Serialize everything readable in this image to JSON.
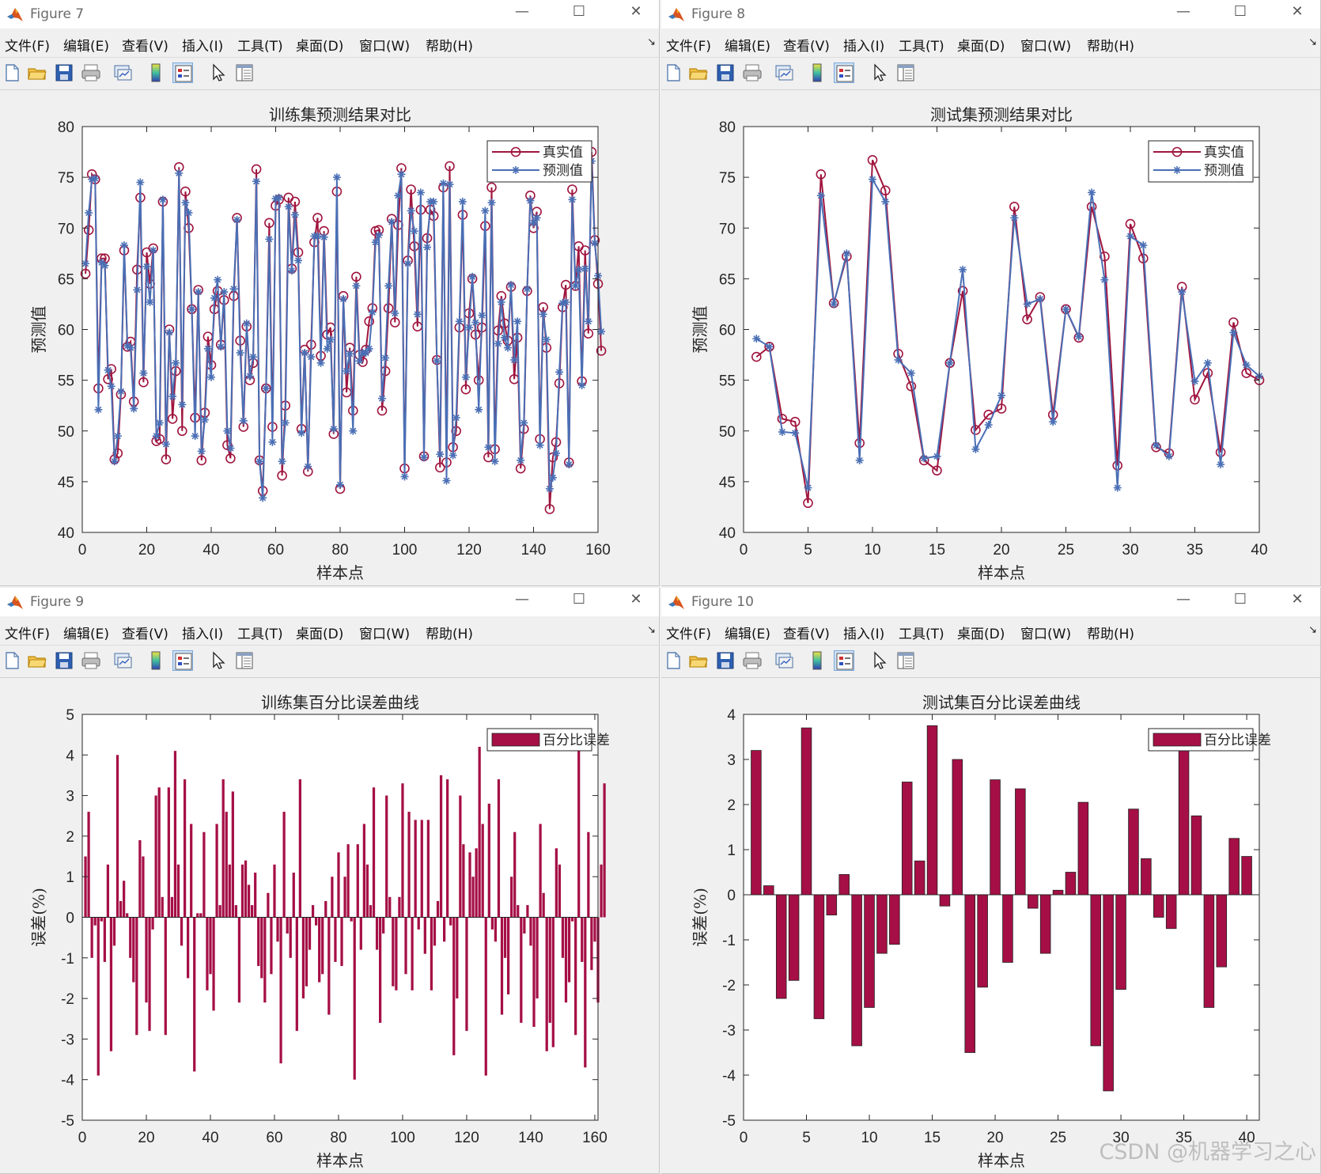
{
  "menus": [
    "文件(F)",
    "编辑(E)",
    "查看(V)",
    "插入(I)",
    "工具(T)",
    "桌面(D)",
    "窗口(W)",
    "帮助(H)"
  ],
  "toolbar_icons": [
    "new-file-icon",
    "open-folder-icon",
    "save-icon",
    "print-icon",
    "link-plot-icon",
    "colorbar-icon",
    "legend-icon",
    "pointer-icon",
    "property-inspector-icon"
  ],
  "window_controls": {
    "minimize": "—",
    "maximize": "☐",
    "close": "✕"
  },
  "colors": {
    "true": "#a0153e",
    "pred": "#4a6fb5",
    "bar": "#a50f45"
  },
  "watermark": "CSDN @机器学习之心",
  "windows": [
    {
      "id": "fig7",
      "title": "Figure 7"
    },
    {
      "id": "fig8",
      "title": "Figure 8"
    },
    {
      "id": "fig9",
      "title": "Figure 9"
    },
    {
      "id": "fig10",
      "title": "Figure 10"
    }
  ],
  "chart_data": [
    {
      "type": "line",
      "title": "训练集预测结果对比",
      "xlabel": "样本点",
      "ylabel": "预测值",
      "xlim": [
        0,
        160
      ],
      "ylim": [
        40,
        80
      ],
      "xticks": [
        0,
        20,
        40,
        60,
        80,
        100,
        120,
        140,
        160
      ],
      "yticks": [
        40,
        45,
        50,
        55,
        60,
        65,
        70,
        75,
        80
      ],
      "legend_position": "top-right",
      "grid": false,
      "series": [
        {
          "name": "真实值",
          "marker": "circle",
          "values": [
            65.5,
            69.8,
            75.3,
            74.8,
            54.2,
            67.0,
            67.0,
            55.1,
            56.1,
            47.2,
            47.8,
            53.6,
            67.8,
            58.3,
            58.8,
            52.9,
            65.9,
            73.0,
            54.8,
            67.6,
            64.5,
            68.0,
            49.0,
            49.2,
            72.6,
            47.2,
            60.0,
            51.2,
            55.9,
            76.0,
            50.0,
            73.6,
            70.0,
            62.0,
            51.3,
            63.9,
            47.1,
            51.8,
            59.3,
            56.5,
            62.0,
            63.8,
            58.5,
            62.9,
            48.6,
            47.3,
            63.3,
            71.0,
            58.9,
            50.4,
            60.3,
            55.0,
            56.7,
            75.8,
            47.1,
            44.1,
            54.2,
            70.5,
            50.4,
            72.2,
            72.8,
            45.6,
            52.5,
            73.0,
            66.0,
            72.6,
            67.6,
            50.2,
            58.0,
            46.0,
            58.5,
            68.6,
            71.0,
            57.4,
            69.7,
            59.5,
            60.2,
            49.7,
            73.6,
            44.3,
            63.3,
            53.8,
            58.2,
            52.0,
            65.2,
            57.5,
            56.8,
            58.0,
            60.8,
            62.1,
            69.7,
            69.8,
            52.0,
            55.9,
            62.1,
            70.9,
            60.7,
            70.3,
            75.9,
            46.3,
            66.8,
            73.8,
            68.2,
            60.3,
            71.8,
            47.5,
            69.0,
            71.8,
            71.2,
            57.0,
            46.4,
            74.0,
            46.9,
            76.1,
            48.4,
            50.0,
            60.2,
            71.3,
            54.1,
            61.6,
            65.0,
            59.5,
            55.0,
            60.2,
            70.2,
            47.4,
            74.0,
            48.2,
            59.9,
            63.3,
            60.6,
            58.9,
            64.2,
            55.1,
            59.2,
            46.3,
            50.2,
            63.8,
            73.2,
            70.0,
            71.6,
            49.2,
            62.2,
            58.2,
            42.3,
            47.4,
            48.9,
            54.7,
            62.2,
            64.4,
            46.9,
            73.8,
            64.3,
            68.2,
            54.9,
            67.8,
            59.6,
            77.5,
            68.8,
            64.5,
            57.9
          ]
        },
        {
          "name": "预测值",
          "marker": "star",
          "values": [
            66.5,
            71.5,
            74.8,
            74.9,
            52.1,
            66.6,
            66.3,
            56.0,
            54.4,
            47.0,
            49.5,
            53.9,
            68.3,
            58.4,
            58.2,
            52.2,
            63.9,
            74.5,
            55.7,
            66.2,
            62.7,
            67.8,
            49.5,
            50.8,
            72.8,
            48.7,
            59.7,
            53.4,
            56.7,
            75.4,
            52.6,
            72.5,
            71.5,
            62.0,
            49.5,
            63.7,
            48.0,
            51.1,
            58.1,
            55.3,
            63.1,
            64.9,
            58.3,
            63.7,
            50.0,
            48.3,
            64.0,
            70.8,
            57.7,
            51.0,
            60.6,
            55.4,
            57.3,
            74.6,
            47.0,
            43.4,
            54.2,
            68.9,
            48.9,
            72.9,
            73.0,
            47.0,
            50.8,
            72.1,
            65.8,
            71.3,
            66.8,
            49.8,
            57.7,
            46.5,
            57.3,
            69.2,
            69.2,
            56.7,
            69.1,
            58.1,
            59.0,
            50.2,
            75.0,
            44.7,
            63.0,
            55.9,
            57.6,
            50.0,
            64.3,
            56.9,
            57.7,
            57.7,
            58.1,
            61.7,
            68.6,
            69.3,
            53.2,
            57.2,
            64.3,
            70.6,
            61.6,
            73.2,
            75.3,
            45.5,
            66.5,
            71.7,
            69.7,
            61.5,
            73.5,
            47.4,
            68.1,
            72.6,
            72.6,
            56.9,
            47.7,
            74.4,
            45.1,
            74.3,
            47.6,
            51.3,
            60.8,
            72.6,
            55.3,
            60.2,
            65.2,
            60.7,
            52.1,
            61.4,
            71.7,
            48.4,
            72.5,
            47.0,
            58.6,
            62.7,
            59.2,
            58.2,
            64.4,
            57.0,
            60.8,
            47.1,
            50.8,
            64.0,
            72.7,
            70.5,
            71.0,
            48.6,
            61.5,
            59.0,
            44.3,
            45.4,
            47.8,
            55.8,
            62.6,
            62.7,
            46.7,
            72.8,
            64.3,
            65.9,
            54.5,
            66.0,
            60.8,
            76.6,
            68.5,
            65.3,
            59.8
          ]
        }
      ]
    },
    {
      "type": "line",
      "title": "测试集预测结果对比",
      "xlabel": "样本点",
      "ylabel": "预测值",
      "xlim": [
        0,
        40
      ],
      "ylim": [
        40,
        80
      ],
      "xticks": [
        0,
        5,
        10,
        15,
        20,
        25,
        30,
        35,
        40
      ],
      "yticks": [
        40,
        45,
        50,
        55,
        60,
        65,
        70,
        75,
        80
      ],
      "legend_position": "top-right",
      "grid": false,
      "series": [
        {
          "name": "真实值",
          "marker": "circle",
          "values": [
            57.3,
            58.3,
            51.2,
            50.9,
            42.9,
            75.3,
            62.6,
            67.2,
            48.8,
            76.7,
            73.7,
            57.6,
            54.4,
            47.1,
            46.1,
            56.7,
            63.8,
            50.1,
            51.6,
            52.2,
            72.1,
            61.0,
            63.2,
            51.6,
            62.0,
            59.2,
            72.1,
            67.2,
            46.6,
            70.4,
            67.0,
            48.4,
            47.8,
            64.2,
            53.1,
            55.7,
            47.9,
            60.7,
            55.7,
            55.0
          ]
        },
        {
          "name": "预测值",
          "marker": "star",
          "values": [
            59.1,
            58.3,
            49.9,
            49.8,
            44.4,
            73.2,
            62.5,
            67.5,
            47.1,
            74.8,
            72.6,
            57.0,
            55.7,
            47.3,
            47.5,
            56.7,
            65.9,
            48.2,
            50.6,
            53.5,
            71.0,
            62.5,
            63.0,
            50.9,
            62.0,
            59.3,
            73.5,
            64.9,
            44.4,
            69.2,
            68.3,
            48.6,
            47.5,
            63.7,
            54.9,
            56.7,
            46.7,
            59.7,
            56.5,
            55.4
          ]
        }
      ]
    },
    {
      "type": "bar",
      "title": "训练集百分比误差曲线",
      "xlabel": "样本点",
      "ylabel": "误差(%)",
      "xlim": [
        0,
        161
      ],
      "ylim": [
        -5,
        5
      ],
      "xticks": [
        0,
        20,
        40,
        60,
        80,
        100,
        120,
        140,
        160
      ],
      "yticks": [
        -5,
        -4,
        -3,
        -2,
        -1,
        0,
        1,
        2,
        3,
        4,
        5
      ],
      "legend_position": "top-right",
      "series": [
        {
          "name": "百分比误差",
          "values": [
            1.5,
            2.6,
            -1.0,
            -0.2,
            -3.9,
            -0.1,
            -1.1,
            1.3,
            -3.3,
            -0.7,
            4.0,
            0.4,
            0.9,
            0.1,
            -1.0,
            -1.6,
            -2.9,
            1.9,
            1.5,
            -2.1,
            -2.8,
            -0.3,
            3.0,
            3.2,
            0.5,
            -2.9,
            3.2,
            0.5,
            4.1,
            1.3,
            -0.7,
            3.4,
            -1.5,
            2.3,
            -3.8,
            0.1,
            0.1,
            2.1,
            -1.8,
            -1.4,
            -2.3,
            2.3,
            0.3,
            3.4,
            2.6,
            1.3,
            3.1,
            0.3,
            -2.1,
            1.3,
            1.4,
            0.8,
            0.3,
            1.1,
            -1.2,
            -1.5,
            -2.1,
            0.6,
            -1.4,
            1.3,
            -0.6,
            -3.6,
            2.6,
            -0.4,
            -1.0,
            1.1,
            -2.8,
            3.4,
            -2.0,
            -1.7,
            -0.8,
            0.3,
            -0.2,
            -1.6,
            -1.4,
            0.4,
            -2.4,
            1.0,
            -1.1,
            1.6,
            -1.2,
            1.0,
            1.8,
            -0.1,
            -4.0,
            1.8,
            -0.8,
            2.3,
            1.3,
            0.3,
            3.2,
            -0.8,
            -2.6,
            -0.4,
            3.0,
            0.5,
            -1.7,
            -1.8,
            0.5,
            3.3,
            -1.4,
            2.6,
            -1.8,
            2.4,
            -0.3,
            2.4,
            -0.9,
            2.4,
            -1.8,
            -0.7,
            0.4,
            3.5,
            -0.6,
            3.4,
            -0.2,
            -3.4,
            -2.0,
            3.0,
            1.8,
            -2.8,
            1.6,
            1.0,
            1.7,
            4.2,
            2.3,
            -3.9,
            2.8,
            -0.3,
            -0.6,
            3.4,
            -2.4,
            -1.0,
            -1.9,
            1.0,
            2.1,
            0.3,
            -2.6,
            -0.4,
            0.3,
            -0.7,
            -2.7,
            -2.0,
            2.3,
            0.6,
            -3.3,
            -2.6,
            -3.2,
            1.7,
            1.3,
            -1.0,
            -2.1,
            -1.6,
            -0.1,
            -2.9,
            4.1,
            -1.1,
            -3.7,
            2.1,
            -1.3,
            -0.6,
            -2.1,
            1.3,
            3.3
          ]
        }
      ]
    },
    {
      "type": "bar",
      "title": "测试集百分比误差曲线",
      "xlabel": "样本点",
      "ylabel": "误差(%)",
      "xlim": [
        0,
        41
      ],
      "ylim": [
        -5,
        4
      ],
      "xticks": [
        0,
        5,
        10,
        15,
        20,
        25,
        30,
        35,
        40
      ],
      "yticks": [
        -5,
        -4,
        -3,
        -2,
        -1,
        0,
        1,
        2,
        3,
        4
      ],
      "legend_position": "top-right",
      "series": [
        {
          "name": "百分比误差",
          "values": [
            3.2,
            0.2,
            -2.3,
            -1.9,
            3.7,
            -2.75,
            -0.45,
            0.45,
            -3.35,
            -2.5,
            -1.3,
            -1.1,
            2.5,
            0.75,
            3.75,
            -0.25,
            3.0,
            -3.5,
            -2.05,
            2.55,
            -1.5,
            2.35,
            -0.3,
            -1.3,
            0.1,
            0.5,
            2.05,
            -3.35,
            -4.35,
            -2.1,
            1.9,
            0.8,
            -0.5,
            -0.75,
            3.3,
            1.75,
            -2.5,
            -1.6,
            1.25,
            0.85
          ]
        }
      ]
    }
  ]
}
